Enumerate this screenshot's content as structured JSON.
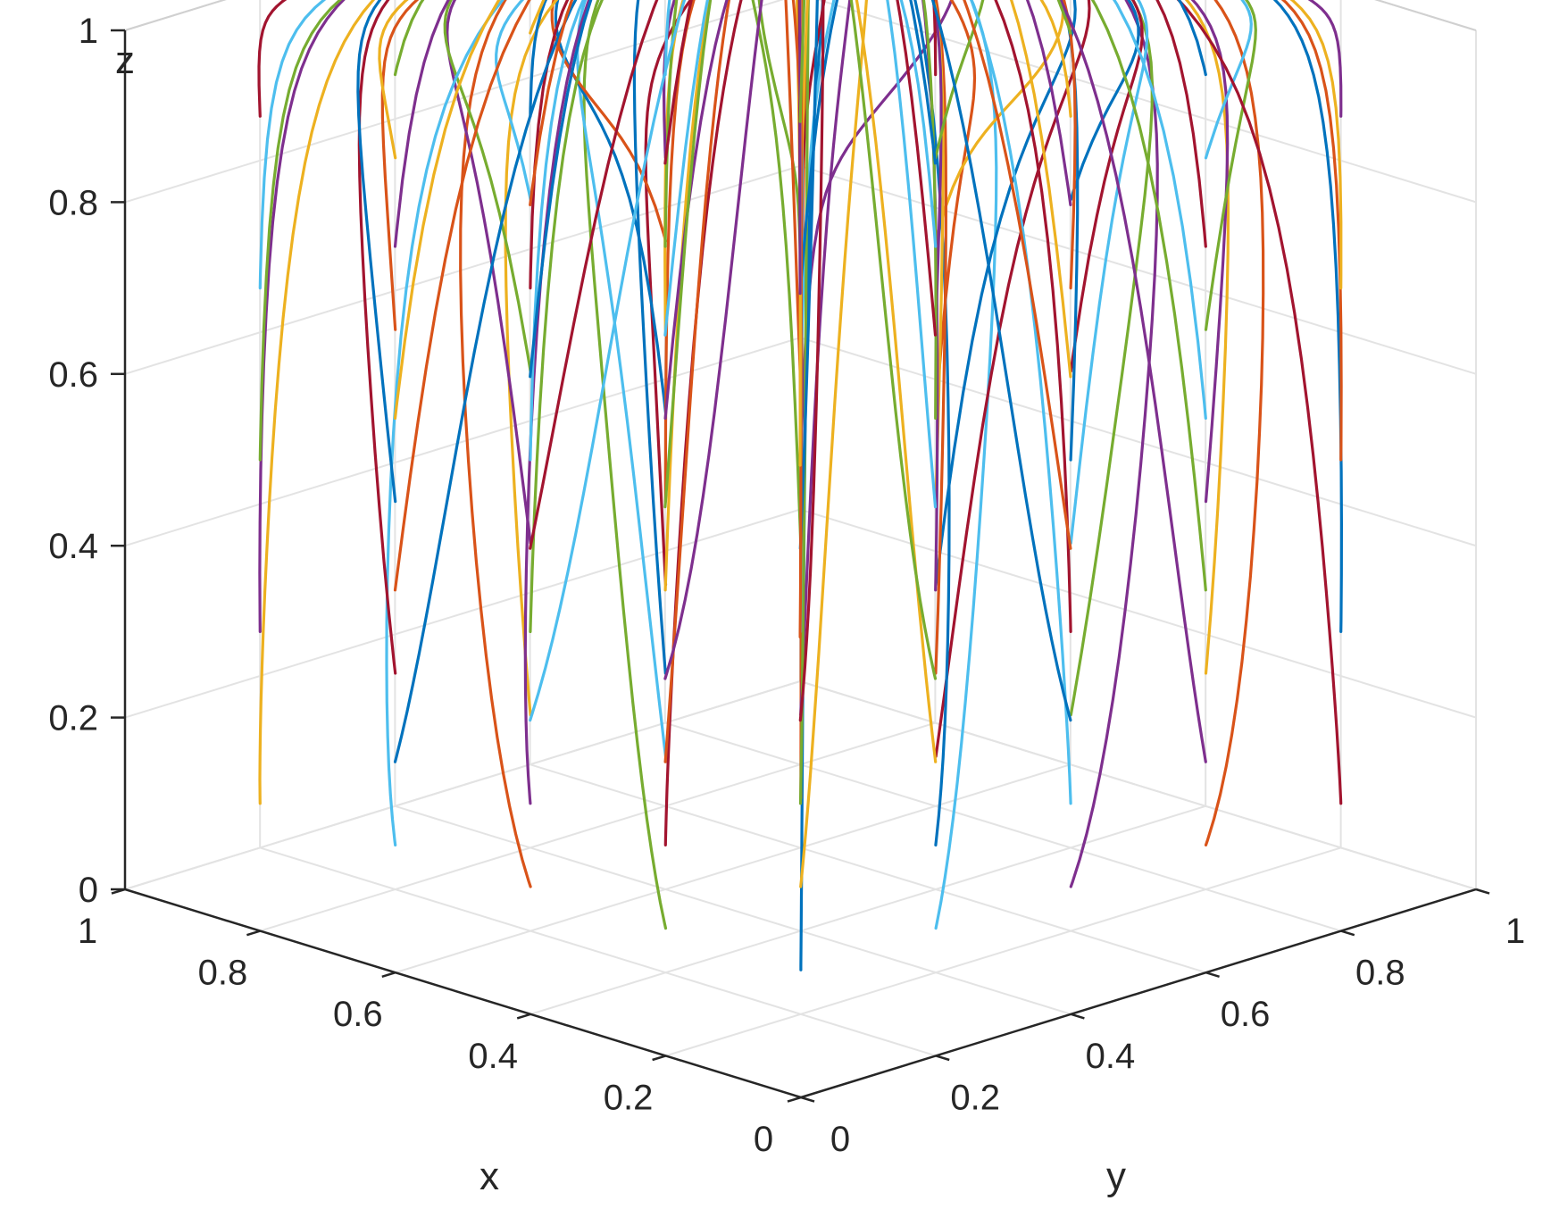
{
  "chart_data": {
    "type": "line",
    "subtype": "3d-trajectories",
    "title": "",
    "xlabel": "x",
    "ylabel": "y",
    "zlabel": "z",
    "xlim": [
      0,
      1
    ],
    "ylim": [
      0,
      1
    ],
    "zlim": [
      0,
      1
    ],
    "x_ticks": [
      "0",
      "0.2",
      "0.4",
      "0.6",
      "0.8",
      "1"
    ],
    "y_ticks": [
      "0",
      "0.2",
      "0.4",
      "0.6",
      "0.8",
      "1"
    ],
    "z_ticks": [
      "0",
      "0.2",
      "0.4",
      "0.6",
      "0.8",
      "1"
    ],
    "grid": true,
    "box_edges": "back faces only",
    "converges_to": [
      1,
      1,
      1
    ],
    "series_colors": [
      "#0072BD",
      "#D95319",
      "#EDB120",
      "#7E2F8E",
      "#77AC30",
      "#4DBEEE",
      "#A2142F"
    ],
    "start_grid": {
      "x_values": [
        0.1,
        0.3,
        0.5,
        0.7,
        0.9
      ],
      "y_values": [
        0.1,
        0.3,
        0.5,
        0.7,
        0.9
      ],
      "z_values": [
        0.1,
        0.3,
        0.5,
        0.7,
        0.9
      ]
    },
    "trajectories_per_start": 1
  }
}
